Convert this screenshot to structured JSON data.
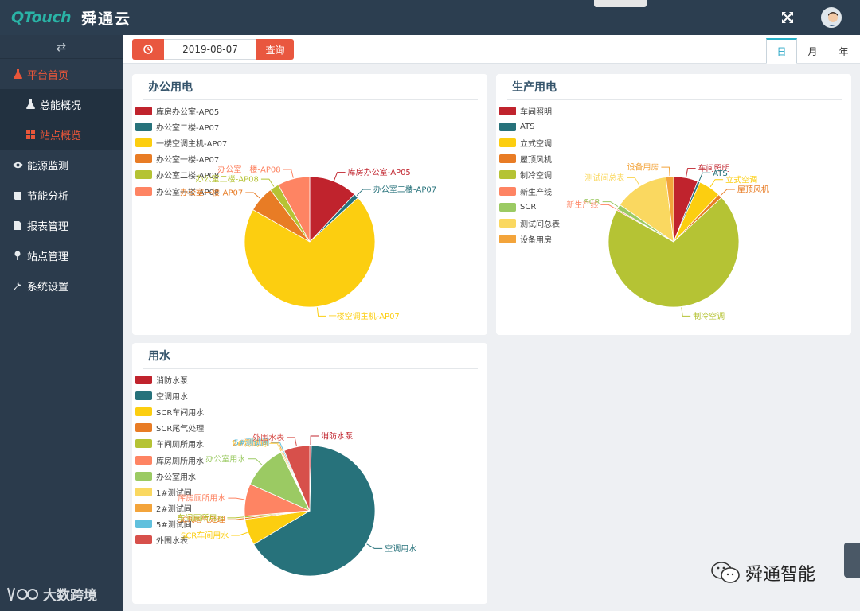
{
  "header": {
    "brand": "QTouch",
    "app_name": "舜通云",
    "fullscreen_icon": "expand-arrows-icon",
    "avatar_icon": "user-avatar"
  },
  "sidebar": {
    "toggle_icon": "swap-arrows-icon",
    "items": [
      {
        "label": "平台首页",
        "icon": "flask-icon",
        "active": true
      },
      {
        "label": "总能概况",
        "icon": "flask-icon",
        "sub": true
      },
      {
        "label": "站点概览",
        "icon": "grid-icon",
        "sub": true,
        "current": true
      },
      {
        "label": "能源监测",
        "icon": "eye-icon"
      },
      {
        "label": "节能分析",
        "icon": "book-icon"
      },
      {
        "label": "报表管理",
        "icon": "file-icon"
      },
      {
        "label": "站点管理",
        "icon": "map-pin-icon"
      },
      {
        "label": "系统设置",
        "icon": "wrench-icon"
      }
    ]
  },
  "toolbar": {
    "date_icon": "clock-icon",
    "date_value": "2019-08-07",
    "query_label": "查询",
    "period_tabs": [
      "日",
      "月",
      "年"
    ],
    "active_period": "日"
  },
  "watermarks": {
    "left": "大数跨境",
    "right": "舜通智能"
  },
  "colors": {
    "accent": "#e9573f",
    "topbar": "#2c3e50",
    "sidebar": "#2b3b4c",
    "tab_active": "#2bb1c8"
  },
  "chart_data": [
    {
      "type": "pie",
      "title": "办公用电",
      "legend_position": "top-left",
      "series": [
        {
          "name": "库房办公室-AP05",
          "value": 12,
          "color": "#c0232d"
        },
        {
          "name": "办公室二楼-AP07",
          "value": 1.2,
          "color": "#27727b"
        },
        {
          "name": "一楼空调主机-AP07",
          "value": 70,
          "color": "#fcce10"
        },
        {
          "name": "办公室一楼-AP07",
          "value": 6.5,
          "color": "#e87c25"
        },
        {
          "name": "办公室二楼-AP08",
          "value": 2.3,
          "color": "#b5c334"
        },
        {
          "name": "办公室一楼-AP08",
          "value": 8,
          "color": "#fe8463"
        }
      ]
    },
    {
      "type": "pie",
      "title": "生产用电",
      "legend_position": "top-left",
      "series": [
        {
          "name": "车间照明",
          "value": 6,
          "color": "#c0232d"
        },
        {
          "name": "ATS",
          "value": 0.6,
          "color": "#27727b"
        },
        {
          "name": "立式空调",
          "value": 5.5,
          "color": "#fcce10"
        },
        {
          "name": "屋顶风机",
          "value": 1,
          "color": "#e87c25"
        },
        {
          "name": "制冷空调",
          "value": 70,
          "color": "#b5c334"
        },
        {
          "name": "新生产线",
          "value": 0.3,
          "color": "#fe8463"
        },
        {
          "name": "SCR",
          "value": 1.2,
          "color": "#9bca63"
        },
        {
          "name": "测试间总表",
          "value": 13.5,
          "color": "#fad860"
        },
        {
          "name": "设备用房",
          "value": 1.9,
          "color": "#f3a43b"
        }
      ]
    },
    {
      "type": "pie",
      "title": "用水",
      "legend_position": "top-left",
      "series": [
        {
          "name": "消防水泵",
          "value": 0.4,
          "color": "#c0232d"
        },
        {
          "name": "空调用水",
          "value": 66,
          "color": "#27727b"
        },
        {
          "name": "SCR车间用水",
          "value": 6.5,
          "color": "#fcce10"
        },
        {
          "name": "SCR尾气处理",
          "value": 0.4,
          "color": "#e87c25"
        },
        {
          "name": "车间厕所用水",
          "value": 0.4,
          "color": "#b5c334"
        },
        {
          "name": "库房厕所用水",
          "value": 8,
          "color": "#fe8463"
        },
        {
          "name": "办公室用水",
          "value": 11,
          "color": "#9bca63"
        },
        {
          "name": "1#测试间",
          "value": 0.3,
          "color": "#fad860"
        },
        {
          "name": "2#测试间",
          "value": 0.3,
          "color": "#f3a43b"
        },
        {
          "name": "5#测试间",
          "value": 0.3,
          "color": "#60c0dd"
        },
        {
          "name": "外围水表",
          "value": 6.4,
          "color": "#d7504b"
        }
      ]
    }
  ]
}
